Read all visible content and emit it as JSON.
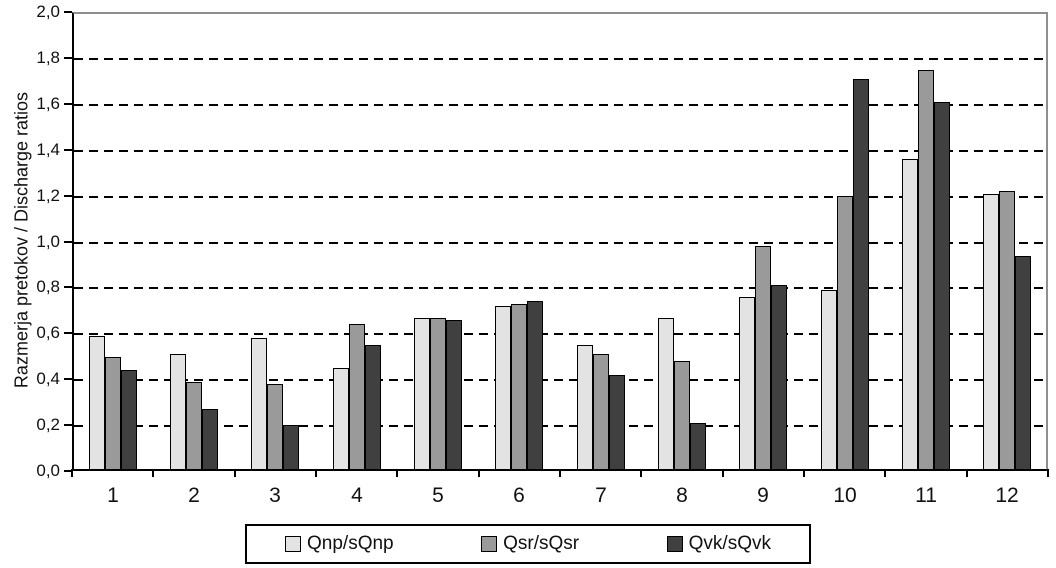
{
  "chart_data": {
    "type": "bar",
    "title": "",
    "xlabel": "",
    "ylabel": "Razmerja pretokov / Discharge ratios",
    "ylim": [
      0.0,
      2.0
    ],
    "ytick_step": 0.2,
    "ytick_labels": [
      "0,0",
      "0,2",
      "0,4",
      "0,6",
      "0,8",
      "1,0",
      "1,2",
      "1,4",
      "1,6",
      "1,8",
      "2,0"
    ],
    "categories": [
      "1",
      "2",
      "3",
      "4",
      "5",
      "6",
      "7",
      "8",
      "9",
      "10",
      "11",
      "12"
    ],
    "series": [
      {
        "name": "Qnp/sQnp",
        "color": "#e3e3e3",
        "values": [
          0.58,
          0.5,
          0.57,
          0.44,
          0.66,
          0.71,
          0.54,
          0.66,
          0.75,
          0.78,
          1.35,
          1.2
        ]
      },
      {
        "name": "Qsr/sQsr",
        "color": "#9a9a9a",
        "values": [
          0.49,
          0.38,
          0.37,
          0.63,
          0.66,
          0.72,
          0.5,
          0.47,
          0.97,
          1.19,
          1.74,
          1.21
        ]
      },
      {
        "name": "Qvk/sQvk",
        "color": "#404040",
        "values": [
          0.43,
          0.26,
          0.19,
          0.54,
          0.65,
          0.73,
          0.41,
          0.2,
          0.8,
          1.7,
          1.6,
          0.93
        ]
      }
    ],
    "grid": "horizontal-dashed",
    "legend_position": "bottom",
    "plot_border_color": "#8f8f8f",
    "bar_outline_color": "#000000"
  }
}
